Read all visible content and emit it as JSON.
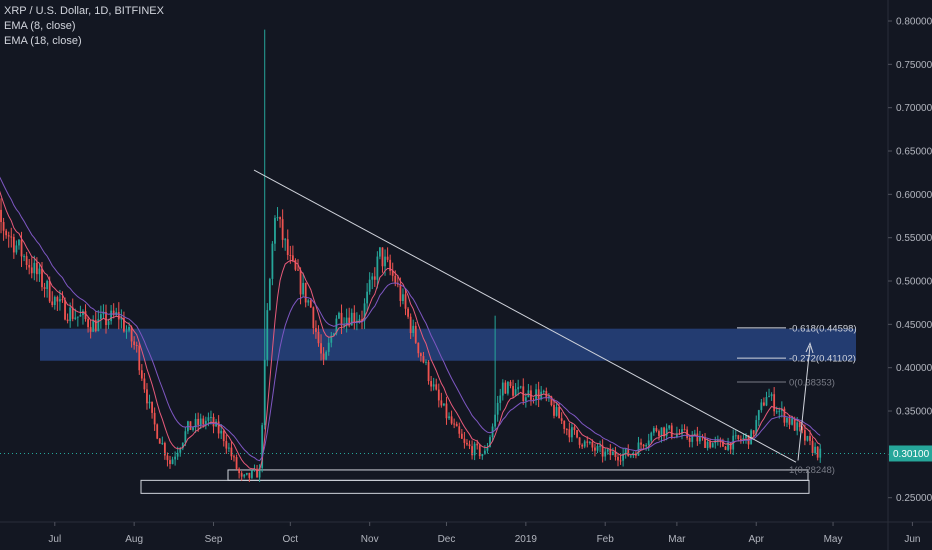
{
  "legend": {
    "symbol_line": "XRP / U.S. Dollar, 1D, BITFINEX",
    "ema_fast": "EMA (8, close)",
    "ema_slow": "EMA (18, close)"
  },
  "colors": {
    "background": "#131722",
    "up": "#26a69a",
    "down": "#ef5350",
    "ema_fast": "#e75a7a",
    "ema_slow": "#7e57c2",
    "zone": "#2a4a8c",
    "last_price": "#26a69a"
  },
  "last_price_label": "0.30100",
  "fib_labels": {
    "f618": "-0.618(0.44598)",
    "f272": "-0.272(0.41102)",
    "f0": "0(0.38353)",
    "f1": "1(0.28248)"
  },
  "chart_data": {
    "type": "candlestick",
    "title": "XRP / U.S. Dollar, 1D, BITFINEX",
    "y_ticks": [
      "0.80000",
      "0.75000",
      "0.70000",
      "0.65000",
      "0.60000",
      "0.55000",
      "0.50000",
      "0.45000",
      "0.40000",
      "0.35000",
      "0.30000",
      "0.25000"
    ],
    "x_ticks": [
      "Jul",
      "Aug",
      "Sep",
      "Oct",
      "Nov",
      "Dec",
      "2019",
      "Feb",
      "Mar",
      "Apr",
      "May",
      "Jun"
    ],
    "ylim": [
      0.24,
      0.81
    ],
    "last_price": 0.301,
    "support_zone": [
      0.408,
      0.445
    ],
    "bottom_boxes": [
      [
        0.282,
        0.27
      ],
      [
        0.27,
        0.255
      ]
    ],
    "trendline": {
      "from": [
        "Sep 22",
        0.628
      ],
      "to": [
        "Apr 26",
        0.291
      ]
    },
    "fib_levels": [
      {
        "ratio": "-0.618",
        "price": 0.44598
      },
      {
        "ratio": "-0.272",
        "price": 0.41102
      },
      {
        "ratio": "0",
        "price": 0.38353
      },
      {
        "ratio": "1",
        "price": 0.28248
      }
    ],
    "key_points": [
      {
        "date": "Jun 2018",
        "close": 0.65
      },
      {
        "date": "Jul 2018",
        "close": 0.45
      },
      {
        "date": "Aug 2018",
        "close": 0.28
      },
      {
        "date": "Sep 2018",
        "close": 0.27
      },
      {
        "date": "Sep 21 2018",
        "high": 0.79
      },
      {
        "date": "Oct 2018",
        "close": 0.46
      },
      {
        "date": "Nov 7 2018",
        "close": 0.54
      },
      {
        "date": "Dec 2018",
        "close": 0.3
      },
      {
        "date": "Dec 20 2018",
        "high": 0.46
      },
      {
        "date": "2019",
        "close": 0.37
      },
      {
        "date": "Feb 2019",
        "close": 0.3
      },
      {
        "date": "Mar 2019",
        "close": 0.32
      },
      {
        "date": "Apr 2 2019",
        "high": 0.38
      },
      {
        "date": "Apr 26 2019",
        "close": 0.301
      }
    ]
  }
}
